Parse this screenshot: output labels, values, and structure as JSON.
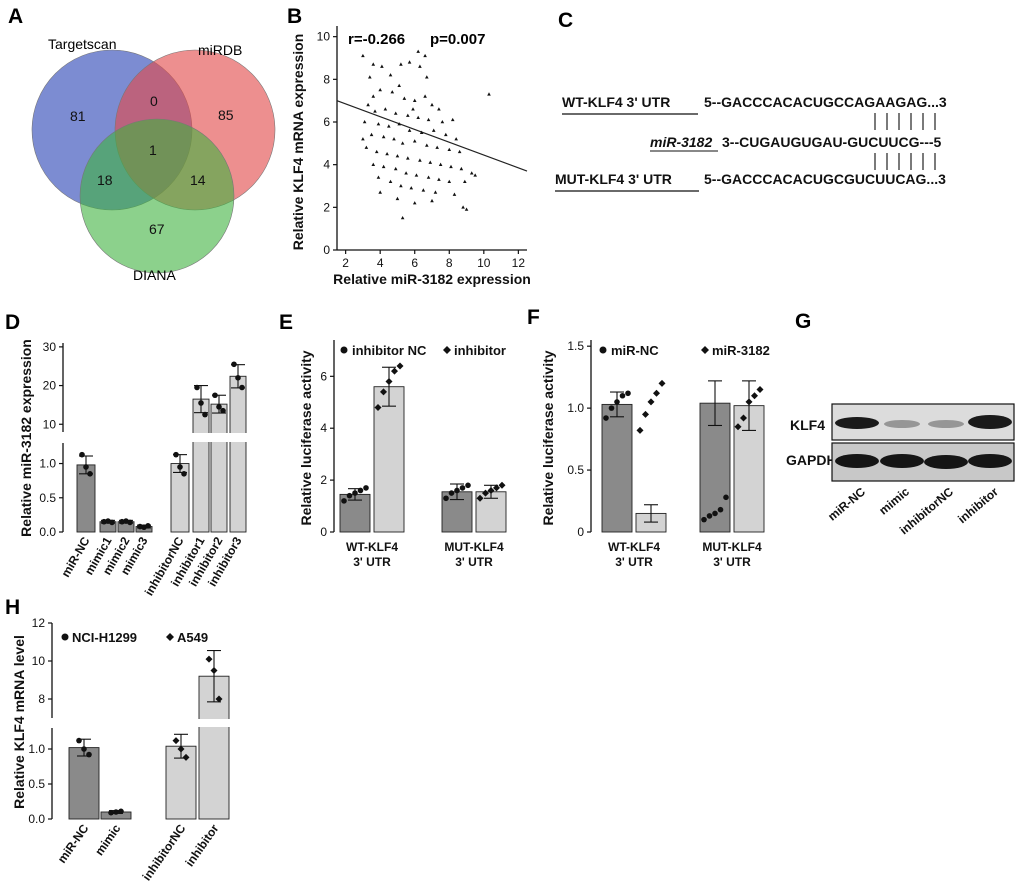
{
  "panels": {
    "A": {
      "label": "A",
      "sets": [
        "Targetscan",
        "miRDB",
        "DIANA"
      ],
      "colors": {
        "Targetscan": "#4a5fc1",
        "miRDB": "#e24a4a",
        "DIANA": "#3fb23f"
      },
      "regions": {
        "T_only": "81",
        "M_only": "85",
        "D_only": "67",
        "TM": "0",
        "TD": "18",
        "MD": "14",
        "TMD": "1"
      }
    },
    "B": {
      "label": "B",
      "r_text": "r=-0.266",
      "p_text": "p=0.007",
      "xlabel": "Relative miR-3182 expression",
      "ylabel": "Relative KLF4 mRNA expression",
      "xticks": [
        "2",
        "4",
        "6",
        "8",
        "10",
        "12"
      ],
      "yticks": [
        "0",
        "2",
        "4",
        "6",
        "8",
        "10"
      ]
    },
    "C": {
      "label": "C",
      "wt_label": "WT-KLF4 3' UTR",
      "wt_seq": "5--GACCCACACUGCCAGAAGAG...3",
      "mir_label": "miR-3182",
      "mir_seq": "3--CUGAUGUGAU-GUCUUCG---5",
      "mut_label": "MUT-KLF4 3' UTR",
      "mut_seq": "5--GACCCACACUGCGUCUUCAG...3"
    },
    "D": {
      "label": "D",
      "ylabel": "Relative miR-3182 expression",
      "yticks_low": [
        "0.0",
        "0.5",
        "1.0"
      ],
      "yticks_high": [
        "10",
        "20",
        "30"
      ],
      "categories": [
        "miR-NC",
        "mimic1",
        "mimic2",
        "mimic3",
        "inhibitorNC",
        "inhibitor1",
        "inhibitor2",
        "inhibitor3"
      ]
    },
    "E": {
      "label": "E",
      "ylabel": "Relative luciferase activity",
      "legend": [
        "inhibitor NC",
        "inhibitor"
      ],
      "yticks": [
        "0",
        "2",
        "4",
        "6"
      ],
      "groups": [
        [
          "WT-KLF4",
          "3' UTR"
        ],
        [
          "MUT-KLF4",
          "3' UTR"
        ]
      ]
    },
    "F": {
      "label": "F",
      "ylabel": "Relative luciferase activity",
      "legend": [
        "miR-NC",
        "miR-3182"
      ],
      "yticks": [
        "0",
        "0.5",
        "1.0",
        "1.5"
      ],
      "groups": [
        [
          "WT-KLF4",
          "3' UTR"
        ],
        [
          "MUT-KLF4",
          "3' UTR"
        ]
      ]
    },
    "G": {
      "label": "G",
      "bands": [
        "KLF4",
        "GAPDH"
      ],
      "lanes": [
        "miR-NC",
        "mimic",
        "inhibitorNC",
        "inhibitor"
      ]
    },
    "H": {
      "label": "H",
      "ylabel": "Relative KLF4 mRNA level",
      "legend": [
        "NCI-H1299",
        "A549"
      ],
      "yticks_low": [
        "0.0",
        "0.5",
        "1.0"
      ],
      "yticks_high": [
        "8",
        "10",
        "12"
      ],
      "categories": [
        "miR-NC",
        "mimic",
        "inhibitorNC",
        "inhibitor"
      ]
    }
  },
  "chart_data": [
    {
      "panel": "B",
      "type": "scatter",
      "xlim": [
        1.5,
        12.5
      ],
      "ylim": [
        0,
        10.5
      ],
      "points": [
        [
          3.0,
          9.1
        ],
        [
          3.6,
          8.7
        ],
        [
          4.1,
          8.6
        ],
        [
          5.2,
          8.7
        ],
        [
          5.7,
          8.8
        ],
        [
          6.2,
          9.3
        ],
        [
          6.6,
          9.1
        ],
        [
          6.3,
          8.6
        ],
        [
          6.7,
          8.1
        ],
        [
          3.4,
          8.1
        ],
        [
          4.6,
          8.2
        ],
        [
          5.1,
          7.7
        ],
        [
          4.0,
          7.5
        ],
        [
          4.7,
          7.4
        ],
        [
          3.6,
          7.2
        ],
        [
          5.4,
          7.1
        ],
        [
          6.0,
          7.0
        ],
        [
          6.6,
          7.2
        ],
        [
          7.0,
          6.8
        ],
        [
          7.4,
          6.6
        ],
        [
          3.3,
          6.8
        ],
        [
          3.7,
          6.5
        ],
        [
          4.3,
          6.6
        ],
        [
          4.9,
          6.4
        ],
        [
          5.6,
          6.3
        ],
        [
          6.2,
          6.2
        ],
        [
          6.8,
          6.1
        ],
        [
          7.6,
          6.0
        ],
        [
          8.2,
          6.1
        ],
        [
          3.1,
          6.0
        ],
        [
          3.9,
          5.9
        ],
        [
          4.5,
          5.8
        ],
        [
          5.1,
          5.9
        ],
        [
          5.7,
          5.6
        ],
        [
          6.4,
          5.5
        ],
        [
          7.1,
          5.6
        ],
        [
          7.8,
          5.4
        ],
        [
          8.4,
          5.2
        ],
        [
          3.5,
          5.4
        ],
        [
          4.2,
          5.3
        ],
        [
          4.8,
          5.2
        ],
        [
          5.3,
          5.0
        ],
        [
          6.0,
          5.1
        ],
        [
          6.7,
          4.9
        ],
        [
          7.3,
          4.8
        ],
        [
          8.0,
          4.7
        ],
        [
          8.6,
          4.6
        ],
        [
          3.2,
          4.8
        ],
        [
          3.8,
          4.6
        ],
        [
          4.4,
          4.5
        ],
        [
          5.0,
          4.4
        ],
        [
          5.6,
          4.3
        ],
        [
          6.3,
          4.2
        ],
        [
          6.9,
          4.1
        ],
        [
          7.5,
          4.0
        ],
        [
          8.1,
          3.9
        ],
        [
          8.7,
          3.8
        ],
        [
          3.6,
          4.0
        ],
        [
          4.2,
          3.9
        ],
        [
          4.9,
          3.8
        ],
        [
          5.5,
          3.6
        ],
        [
          6.1,
          3.5
        ],
        [
          6.8,
          3.4
        ],
        [
          7.4,
          3.3
        ],
        [
          8.0,
          3.2
        ],
        [
          8.9,
          3.2
        ],
        [
          3.9,
          3.4
        ],
        [
          4.6,
          3.2
        ],
        [
          5.2,
          3.0
        ],
        [
          5.8,
          2.9
        ],
        [
          6.5,
          2.8
        ],
        [
          7.2,
          2.7
        ],
        [
          8.3,
          2.6
        ],
        [
          9.3,
          3.6
        ],
        [
          9.5,
          3.5
        ],
        [
          4.0,
          2.7
        ],
        [
          5.0,
          2.4
        ],
        [
          6.0,
          2.2
        ],
        [
          7.0,
          2.3
        ],
        [
          8.8,
          2.0
        ],
        [
          9.0,
          1.9
        ],
        [
          5.3,
          1.5
        ],
        [
          10.3,
          7.3
        ],
        [
          3.0,
          5.2
        ],
        [
          5.9,
          6.6
        ]
      ],
      "fit_line": [
        [
          1.5,
          7.0
        ],
        [
          12.5,
          3.7
        ]
      ]
    },
    {
      "panel": "D",
      "type": "bar",
      "categories": [
        "miR-NC",
        "mimic1",
        "mimic2",
        "mimic3",
        "inhibitorNC",
        "inhibitor1",
        "inhibitor2",
        "inhibitor3"
      ],
      "values": [
        0.98,
        0.15,
        0.15,
        0.08,
        1.0,
        16.5,
        15.2,
        22.4
      ],
      "errors": [
        0.13,
        0.02,
        0.02,
        0.02,
        0.13,
        3.5,
        2.3,
        3.0
      ],
      "points": [
        [
          1.13,
          0.95,
          0.85
        ],
        [
          0.15,
          0.16,
          0.14
        ],
        [
          0.15,
          0.16,
          0.14
        ],
        [
          0.08,
          0.07,
          0.09
        ],
        [
          1.13,
          0.95,
          0.85
        ],
        [
          19.5,
          15.5,
          12.5
        ],
        [
          17.5,
          14.5,
          13.5
        ],
        [
          25.5,
          22.0,
          19.5
        ]
      ],
      "colors": [
        "#8a8a8a",
        "#8a8a8a",
        "#8a8a8a",
        "#8a8a8a",
        "#d3d3d3",
        "#d3d3d3",
        "#d3d3d3",
        "#d3d3d3"
      ],
      "axis_break": {
        "low": [
          0,
          1.3
        ],
        "high": [
          8,
          31
        ]
      }
    },
    {
      "panel": "E",
      "type": "bar",
      "series": [
        {
          "name": "inhibitor NC",
          "values": [
            1.45,
            1.55
          ],
          "errors": [
            0.22,
            0.3
          ],
          "color": "#8a8a8a"
        },
        {
          "name": "inhibitor",
          "values": [
            5.6,
            1.55
          ],
          "errors": [
            0.75,
            0.25
          ],
          "color": "#d3d3d3"
        }
      ],
      "points": [
        [
          [
            1.2,
            1.4,
            1.5,
            1.6,
            1.7
          ],
          [
            1.3,
            1.5,
            1.6,
            1.7,
            1.8
          ]
        ],
        [
          [
            4.8,
            5.4,
            5.8,
            6.2,
            6.4
          ],
          [
            1.3,
            1.5,
            1.6,
            1.7,
            1.8
          ]
        ]
      ],
      "ylim": [
        0,
        7.4
      ]
    },
    {
      "panel": "F",
      "type": "bar",
      "series": [
        {
          "name": "miR-NC",
          "values": [
            1.03,
            1.04
          ],
          "errors": [
            0.1,
            0.18
          ],
          "color": "#8a8a8a"
        },
        {
          "name": "miR-3182",
          "values": [
            0.15,
            1.02
          ],
          "errors": [
            0.07,
            0.2
          ],
          "color": "#d3d3d3"
        }
      ],
      "points": [
        [
          [
            0.92,
            1.0,
            1.05,
            1.1,
            1.12
          ],
          [
            0.1,
            0.13,
            0.15,
            0.18,
            0.28
          ]
        ],
        [
          [
            0.82,
            0.95,
            1.05,
            1.12,
            1.2
          ],
          [
            0.85,
            0.92,
            1.05,
            1.1,
            1.15
          ]
        ]
      ],
      "ylim": [
        0,
        1.55
      ]
    },
    {
      "panel": "H",
      "type": "bar",
      "categories": [
        "miR-NC",
        "mimic",
        "inhibitorNC",
        "inhibitor"
      ],
      "values": [
        1.02,
        0.1,
        1.04,
        9.2
      ],
      "errors": [
        0.12,
        0.02,
        0.17,
        1.35
      ],
      "points": [
        [
          1.12,
          1.0,
          0.92
        ],
        [
          0.09,
          0.1,
          0.11
        ],
        [
          1.12,
          1.0,
          0.88
        ],
        [
          10.1,
          9.5,
          8.0
        ]
      ],
      "colors": [
        "#8a8a8a",
        "#8a8a8a",
        "#d3d3d3",
        "#d3d3d3"
      ],
      "axis_break": {
        "low": [
          0,
          1.3
        ],
        "high": [
          7,
          12
        ]
      }
    }
  ]
}
